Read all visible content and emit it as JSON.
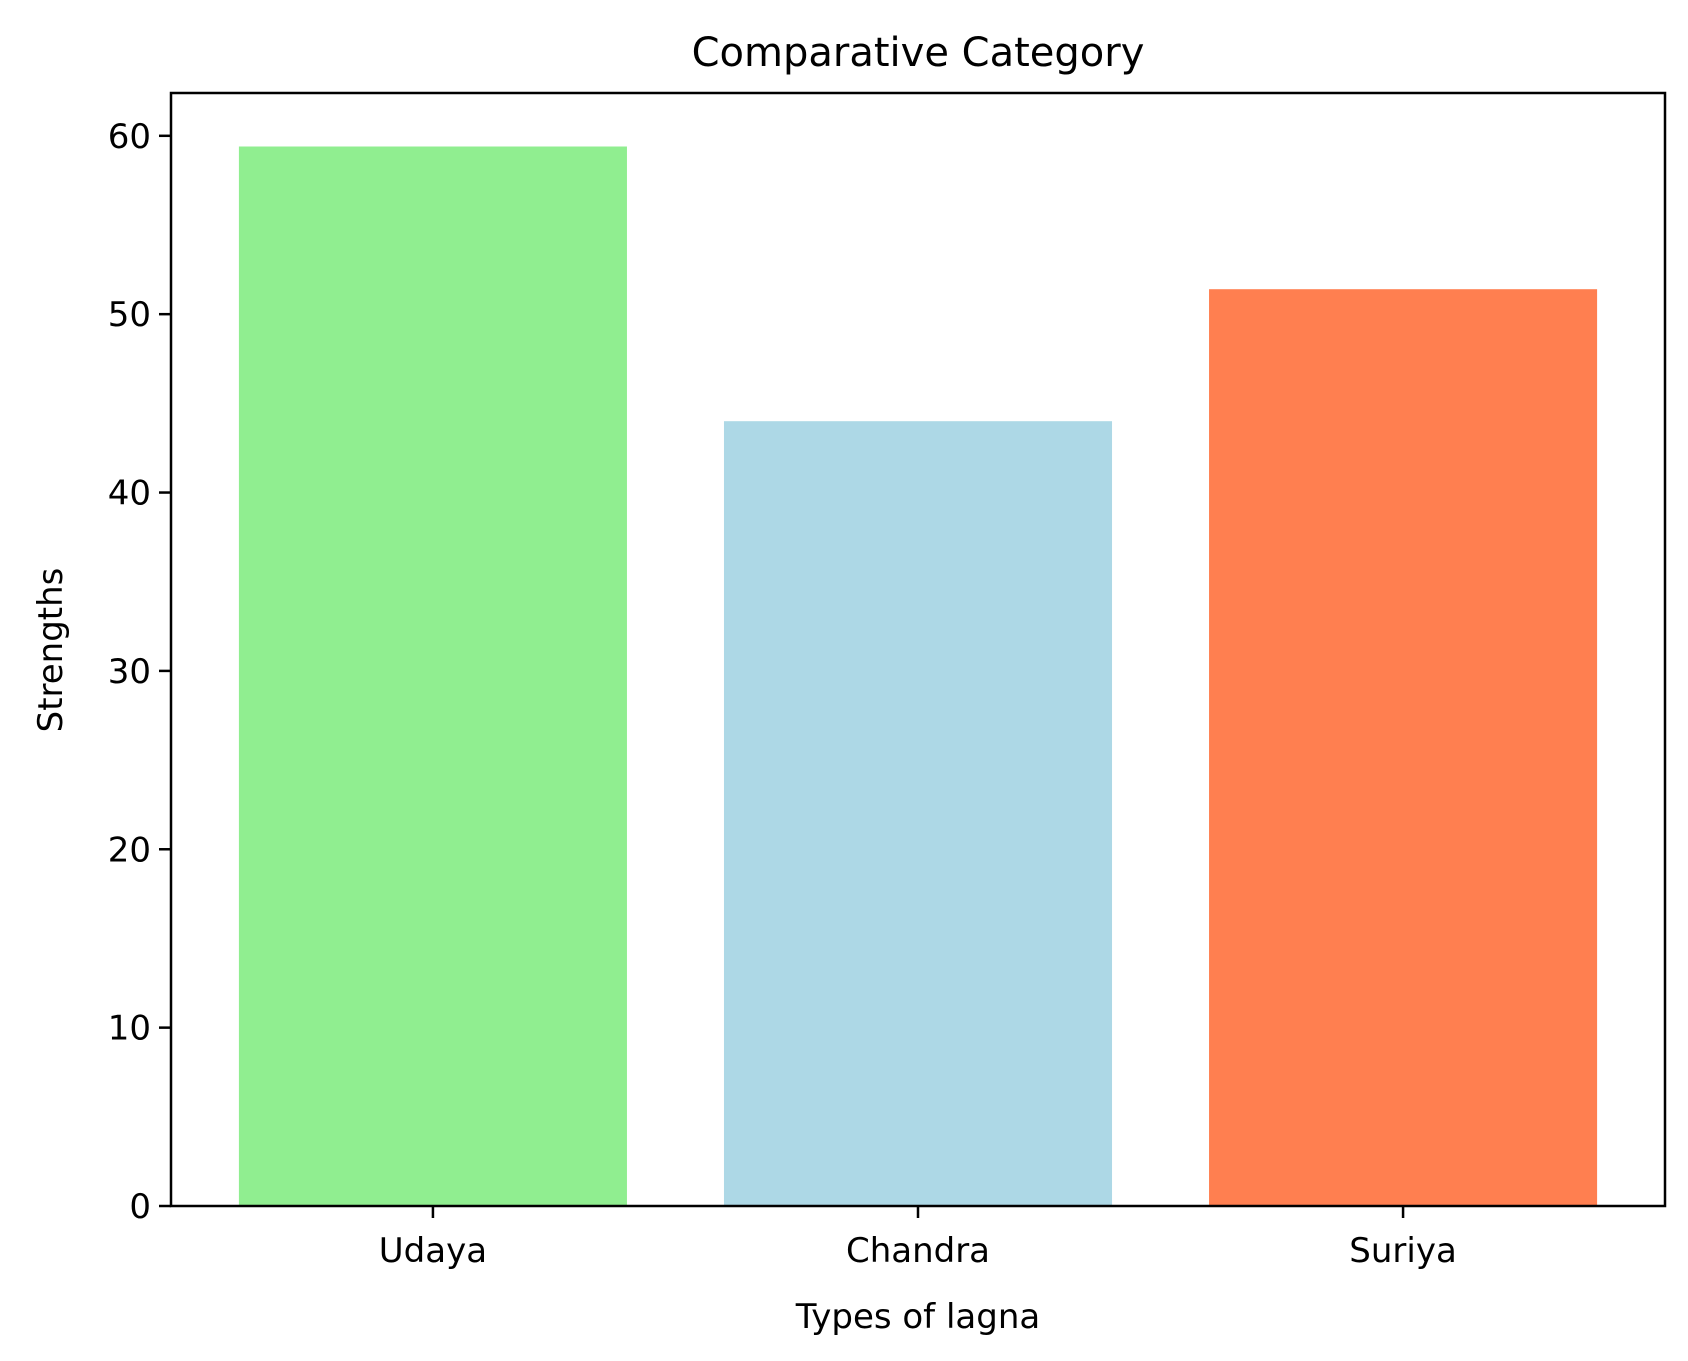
{
  "chart_data": {
    "type": "bar",
    "title": "Comparative Category",
    "xlabel": "Types of lagna",
    "ylabel": "Strengths",
    "categories": [
      "Udaya",
      "Chandra",
      "Suriya"
    ],
    "values": [
      59.4,
      44.0,
      51.4
    ],
    "colors": [
      "#90ee90",
      "#add8e6",
      "#ff7f50"
    ],
    "ylim": [
      0,
      62.4
    ],
    "yticks": [
      0,
      10,
      20,
      30,
      40,
      50,
      60
    ],
    "grid": false,
    "legend": "none"
  }
}
